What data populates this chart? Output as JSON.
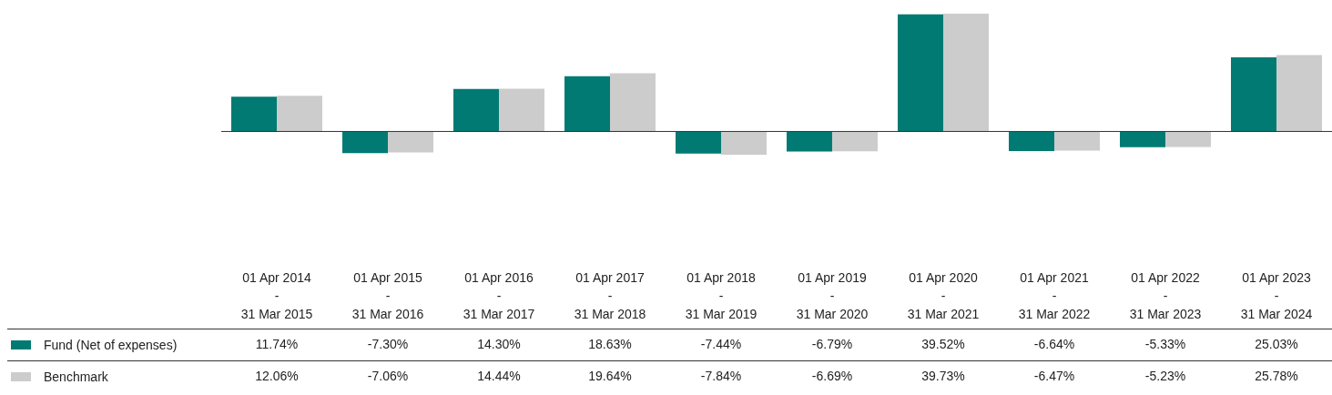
{
  "chart_data": {
    "type": "bar",
    "categories": [
      "01 Apr 2014\n-\n31 Mar 2015",
      "01 Apr 2015\n-\n31 Mar 2016",
      "01 Apr 2016\n-\n31 Mar 2017",
      "01 Apr 2017\n-\n31 Mar 2018",
      "01 Apr 2018\n-\n31 Mar 2019",
      "01 Apr 2019\n-\n31 Mar 2020",
      "01 Apr 2020\n-\n31 Mar 2021",
      "01 Apr 2021\n-\n31 Mar 2022",
      "01 Apr 2022\n-\n31 Mar 2023",
      "01 Apr 2023\n-\n31 Mar 2024"
    ],
    "series": [
      {
        "name": "Fund (Net of expenses)",
        "color": "#007a73",
        "values": [
          11.74,
          -7.3,
          14.3,
          18.63,
          -7.44,
          -6.79,
          39.52,
          -6.64,
          -5.33,
          25.03
        ],
        "value_labels": [
          "11.74%",
          "-7.30%",
          "14.30%",
          "18.63%",
          "-7.44%",
          "-6.79%",
          "39.52%",
          "-6.64%",
          "-5.33%",
          "25.03%"
        ]
      },
      {
        "name": "Benchmark",
        "color": "#cccccc",
        "values": [
          12.06,
          -7.06,
          14.44,
          19.64,
          -7.84,
          -6.69,
          39.73,
          -6.47,
          -5.23,
          25.78
        ],
        "value_labels": [
          "12.06%",
          "-7.06%",
          "14.44%",
          "19.64%",
          "-7.84%",
          "-6.69%",
          "39.73%",
          "-6.47%",
          "-5.23%",
          "25.78%"
        ]
      }
    ],
    "ref_lines": [
      {
        "axis": "y",
        "value": 0,
        "color": "#333333"
      }
    ],
    "legend": "bottom"
  }
}
